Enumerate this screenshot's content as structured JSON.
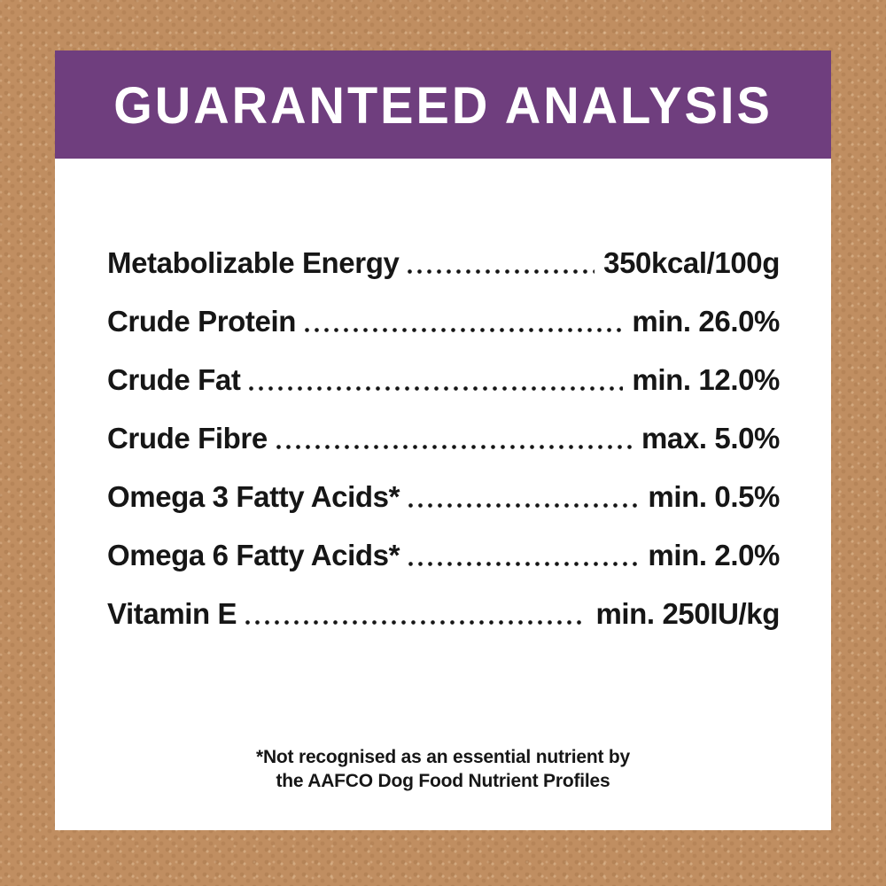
{
  "colors": {
    "background_tan": "#c08e61",
    "header_purple": "#6f3e7e",
    "header_text": "#ffffff",
    "card_white": "#ffffff",
    "body_text": "#161616"
  },
  "header": {
    "title": "GUARANTEED ANALYSIS"
  },
  "table": {
    "rows": [
      {
        "label": "Metabolizable Energy",
        "value": "350kcal/100g"
      },
      {
        "label": "Crude Protein",
        "value": "min. 26.0%"
      },
      {
        "label": "Crude Fat",
        "value": "min. 12.0%"
      },
      {
        "label": "Crude Fibre",
        "value": "max. 5.0%"
      },
      {
        "label": "Omega 3 Fatty Acids*",
        "value": "min. 0.5%"
      },
      {
        "label": "Omega 6 Fatty Acids*",
        "value": "min. 2.0%"
      },
      {
        "label": "Vitamin E",
        "value": "min. 250IU/kg"
      }
    ]
  },
  "footnote": {
    "line1": "*Not recognised as an essential nutrient by",
    "line2": "the AAFCO Dog Food Nutrient Profiles"
  }
}
